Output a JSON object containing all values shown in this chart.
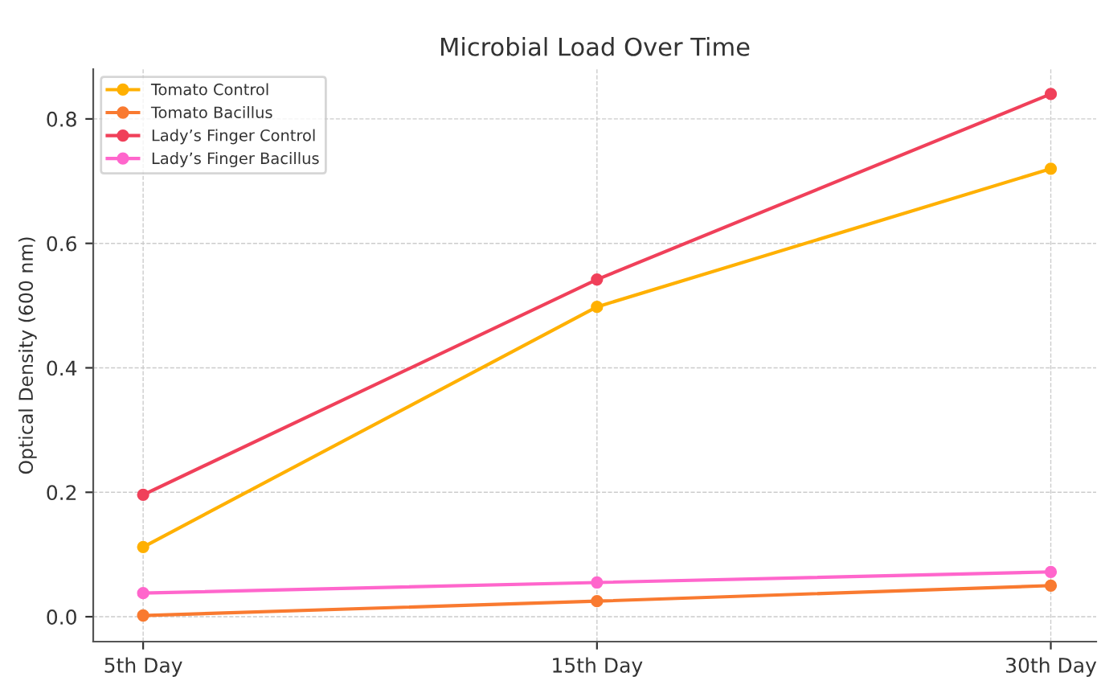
{
  "chart_data": {
    "type": "line",
    "title": "Microbial Load Over Time",
    "ylabel": "Optical Density (600 nm)",
    "categories": [
      "5th Day",
      "15th Day",
      "30th Day"
    ],
    "series": [
      {
        "name": "Tomato Control",
        "color": "#ffb000",
        "values": [
          0.112,
          0.498,
          0.72
        ]
      },
      {
        "name": "Tomato Bacillus",
        "color": "#f97a30",
        "values": [
          0.002,
          0.025,
          0.05
        ]
      },
      {
        "name": "Lady’s Finger Control",
        "color": "#f0405a",
        "values": [
          0.196,
          0.542,
          0.84
        ]
      },
      {
        "name": "Lady’s Finger Bacillus",
        "color": "#ff66cc",
        "values": [
          0.038,
          0.055,
          0.072
        ]
      }
    ],
    "ylim": [
      -0.04,
      0.88
    ],
    "yticks": [
      {
        "value": 0,
        "label": "0.0"
      },
      0.2,
      0.4,
      0.6,
      0.8
    ],
    "grid": true,
    "legend": "top left",
    "marker": "circle",
    "line_style": "solid"
  }
}
